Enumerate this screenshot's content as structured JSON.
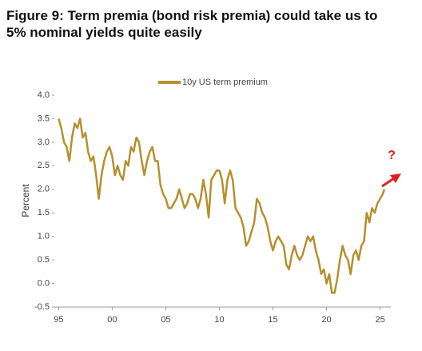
{
  "chart_data": {
    "type": "line",
    "title": [
      "Figure 9: Term premia (bond risk premia) could take us to",
      "5% nominal yields quite easily"
    ],
    "y_label": "Percent",
    "annotation": "?",
    "xlim": [
      1994.6,
      2026
    ],
    "ylim": [
      -0.5,
      4.0
    ],
    "xticks": [
      {
        "value": 1995,
        "label": "95"
      },
      {
        "value": 2000,
        "label": "00"
      },
      {
        "value": 2005,
        "label": "05"
      },
      {
        "value": 2010,
        "label": "10"
      },
      {
        "value": 2015,
        "label": "15"
      },
      {
        "value": 2020,
        "label": "20"
      },
      {
        "value": 2025,
        "label": "25"
      }
    ],
    "yticks": [
      {
        "value": -0.5,
        "label": "-0.5"
      },
      {
        "value": 0,
        "label": "0.0"
      },
      {
        "value": 0.5,
        "label": "0.5"
      },
      {
        "value": 1,
        "label": "1.0"
      },
      {
        "value": 1.5,
        "label": "1.5"
      },
      {
        "value": 2,
        "label": "2.0"
      },
      {
        "value": 2.5,
        "label": "2.5"
      },
      {
        "value": 3,
        "label": "3.0"
      },
      {
        "value": 3.5,
        "label": "3.5"
      },
      {
        "value": 4,
        "label": "4.0"
      }
    ],
    "x": [
      1995.0,
      1995.25,
      1995.5,
      1995.75,
      1996.0,
      1996.25,
      1996.5,
      1996.75,
      1997.0,
      1997.25,
      1997.5,
      1997.75,
      1998.0,
      1998.25,
      1998.5,
      1998.75,
      1999.0,
      1999.25,
      1999.5,
      1999.75,
      2000.0,
      2000.25,
      2000.5,
      2000.75,
      2001.0,
      2001.25,
      2001.5,
      2001.75,
      2002.0,
      2002.25,
      2002.5,
      2002.75,
      2003.0,
      2003.25,
      2003.5,
      2003.75,
      2004.0,
      2004.25,
      2004.5,
      2004.75,
      2005.0,
      2005.25,
      2005.5,
      2005.75,
      2006.0,
      2006.25,
      2006.5,
      2006.75,
      2007.0,
      2007.25,
      2007.5,
      2007.75,
      2008.0,
      2008.25,
      2008.5,
      2008.75,
      2009.0,
      2009.25,
      2009.5,
      2009.75,
      2010.0,
      2010.25,
      2010.5,
      2010.75,
      2011.0,
      2011.25,
      2011.5,
      2011.75,
      2012.0,
      2012.25,
      2012.5,
      2012.75,
      2013.0,
      2013.25,
      2013.5,
      2013.75,
      2014.0,
      2014.25,
      2014.5,
      2014.75,
      2015.0,
      2015.25,
      2015.5,
      2015.75,
      2016.0,
      2016.25,
      2016.5,
      2016.75,
      2017.0,
      2017.25,
      2017.5,
      2017.75,
      2018.0,
      2018.25,
      2018.5,
      2018.75,
      2019.0,
      2019.25,
      2019.5,
      2019.75,
      2020.0,
      2020.25,
      2020.5,
      2020.75,
      2021.0,
      2021.25,
      2021.5,
      2021.75,
      2022.0,
      2022.25,
      2022.5,
      2022.75,
      2023.0,
      2023.25,
      2023.5,
      2023.75,
      2024.0,
      2024.25,
      2024.5,
      2024.75,
      2025.0,
      2025.25,
      2025.4
    ],
    "series": [
      {
        "name": "10y US term premium",
        "color": "#b5902c",
        "values": [
          3.5,
          3.3,
          3.0,
          2.9,
          2.6,
          3.1,
          3.4,
          3.3,
          3.5,
          3.1,
          3.2,
          2.8,
          2.6,
          2.7,
          2.3,
          1.8,
          2.3,
          2.6,
          2.8,
          2.9,
          2.7,
          2.3,
          2.5,
          2.3,
          2.2,
          2.6,
          2.5,
          2.9,
          2.8,
          3.1,
          3.0,
          2.6,
          2.3,
          2.6,
          2.8,
          2.9,
          2.6,
          2.6,
          2.1,
          1.9,
          1.8,
          1.6,
          1.6,
          1.7,
          1.8,
          2.0,
          1.8,
          1.6,
          1.7,
          1.9,
          1.9,
          1.8,
          1.6,
          1.8,
          2.2,
          1.9,
          1.4,
          2.2,
          2.3,
          2.4,
          2.4,
          2.2,
          1.7,
          2.2,
          2.4,
          2.2,
          1.6,
          1.5,
          1.4,
          1.2,
          0.8,
          0.9,
          1.1,
          1.3,
          1.8,
          1.7,
          1.5,
          1.4,
          1.2,
          0.9,
          0.7,
          0.9,
          1.0,
          0.9,
          0.8,
          0.4,
          0.3,
          0.6,
          0.8,
          0.6,
          0.5,
          0.6,
          0.8,
          1.0,
          0.9,
          1.0,
          0.7,
          0.5,
          0.2,
          0.3,
          0.0,
          0.2,
          -0.2,
          -0.2,
          0.1,
          0.5,
          0.8,
          0.6,
          0.5,
          0.2,
          0.6,
          0.7,
          0.5,
          0.8,
          0.9,
          1.5,
          1.3,
          1.6,
          1.5,
          1.7,
          1.8,
          1.9,
          2.0
        ]
      }
    ],
    "legend": "top"
  }
}
